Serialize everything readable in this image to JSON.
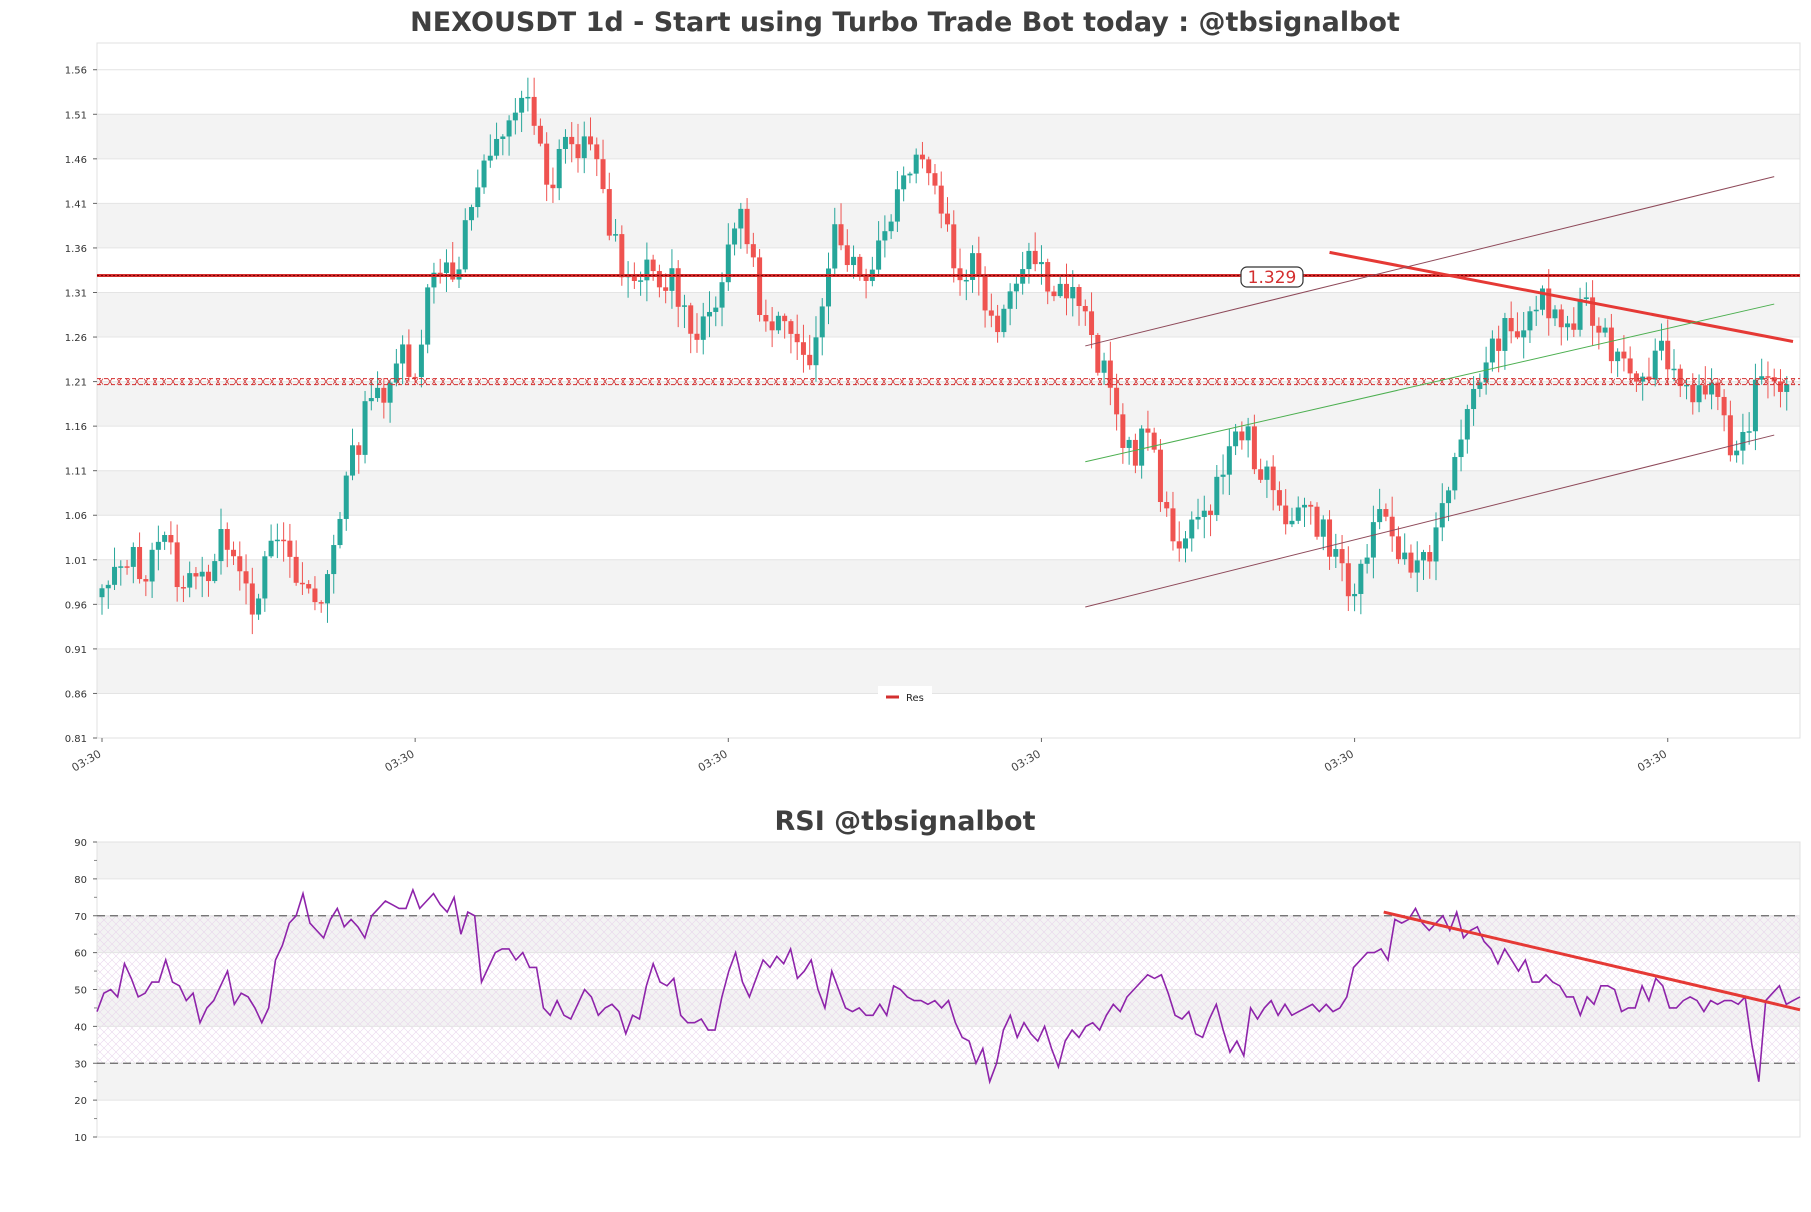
{
  "chart_data": [
    {
      "type": "candlestick",
      "title": "NEXOUSDT 1d - Start using Turbo Trade Bot today : @tbsignalbot",
      "ylim": [
        0.81,
        1.59
      ],
      "y_ticks": [
        "1.56",
        "1.51",
        "1.46",
        "1.41",
        "1.36",
        "1.31",
        "1.26",
        "1.21",
        "1.16",
        "1.11",
        "1.06",
        "1.01",
        "0.96",
        "0.91",
        "0.86",
        "0.81"
      ],
      "x_ticks": [
        "03:30",
        "03:30",
        "03:30",
        "03:30",
        "03:30",
        "03:30"
      ],
      "x_tick_positions": [
        0,
        50,
        100,
        150,
        200,
        250
      ],
      "close_path": [
        0.97,
        0.99,
        1.02,
        0.99,
        1.04,
        1.02,
        0.97,
        1.01,
        0.99,
        1.04,
        1.02,
        0.96,
        1.0,
        1.04,
        0.99,
        0.98,
        0.95,
        1.03,
        1.1,
        1.15,
        1.22,
        1.18,
        1.25,
        1.22,
        1.31,
        1.35,
        1.33,
        1.4,
        1.44,
        1.47,
        1.51,
        1.53,
        1.49,
        1.4,
        1.5,
        1.46,
        1.49,
        1.4,
        1.36,
        1.3,
        1.34,
        1.31,
        1.33,
        1.28,
        1.27,
        1.3,
        1.34,
        1.41,
        1.33,
        1.26,
        1.28,
        1.24,
        1.23,
        1.31,
        1.39,
        1.35,
        1.32,
        1.36,
        1.4,
        1.44,
        1.48,
        1.44,
        1.4,
        1.32,
        1.35,
        1.3,
        1.28,
        1.32,
        1.36,
        1.34,
        1.32,
        1.31,
        1.3,
        1.24,
        1.21,
        1.15,
        1.13,
        1.16,
        1.07,
        1.02,
        1.06,
        1.04,
        1.1,
        1.13,
        1.16,
        1.12,
        1.09,
        1.05,
        1.08,
        1.06,
        1.04,
        1.01,
        0.96,
        1.02,
        1.05,
        1.04,
        1.0,
        1.01,
        1.03,
        1.1,
        1.13,
        1.21,
        1.23,
        1.27,
        1.25,
        1.29,
        1.3,
        1.28,
        1.27,
        1.29,
        1.28,
        1.25,
        1.24,
        1.22,
        1.23,
        1.25,
        1.21,
        1.2,
        1.21,
        1.19,
        1.1,
        1.16,
        1.21,
        1.22,
        1.2
      ],
      "bull_color": "#26a69a",
      "bear_color": "#ef5350",
      "lines": [
        {
          "name": "Res",
          "value": 1.329,
          "label": "1.329",
          "color": "#d32f2f",
          "style": "solid-heavy"
        },
        {
          "value": 1.21,
          "color": "#d32f2f",
          "style": "dashed-x"
        }
      ],
      "trend_lines": [
        {
          "color": "#e53935",
          "width": 3,
          "from": [
            196,
            1.355
          ],
          "to": [
            270,
            1.255
          ]
        },
        {
          "color": "#4caf50",
          "width": 1,
          "from": [
            157,
            1.12
          ],
          "to": [
            267,
            1.297
          ]
        },
        {
          "color": "#8e4a5a",
          "width": 1,
          "from": [
            157,
            1.25
          ],
          "to": [
            267,
            1.44
          ]
        },
        {
          "color": "#8e4a5a",
          "width": 1,
          "from": [
            157,
            0.957
          ],
          "to": [
            267,
            1.15
          ]
        }
      ],
      "legend": [
        "Res"
      ],
      "legend_placement": "bottom-center"
    },
    {
      "type": "line",
      "title": "RSI @tbsignalbot",
      "ylim": [
        10,
        90
      ],
      "y_ticks": [
        "90",
        "80",
        "70",
        "60",
        "50",
        "40",
        "30",
        "20",
        "10"
      ],
      "reference_lines": [
        70,
        30
      ],
      "line_color": "#8e24aa",
      "values": [
        44,
        49,
        50,
        48,
        57,
        53,
        48,
        49,
        52,
        52,
        58,
        52,
        51,
        47,
        49,
        41,
        45,
        47,
        51,
        55,
        46,
        49,
        48,
        45,
        41,
        45,
        58,
        62,
        68,
        70,
        76,
        68,
        66,
        64,
        69,
        72,
        67,
        69,
        67,
        64,
        70,
        72,
        74,
        73,
        72,
        72,
        77,
        72,
        74,
        76,
        73,
        71,
        75,
        65,
        71,
        70,
        52,
        56,
        60,
        61,
        61,
        58,
        60,
        56,
        56,
        45,
        43,
        47,
        43,
        42,
        46,
        50,
        48,
        43,
        45,
        46,
        44,
        38,
        43,
        42,
        51,
        57,
        52,
        51,
        53,
        43,
        41,
        41,
        42,
        39,
        39,
        48,
        55,
        60,
        52,
        48,
        53,
        58,
        56,
        59,
        57,
        61,
        53,
        55,
        58,
        50,
        45,
        55,
        50,
        45,
        44,
        45,
        43,
        43,
        46,
        43,
        51,
        50,
        48,
        47,
        47,
        46,
        47,
        45,
        47,
        41,
        37,
        36,
        30,
        34,
        25,
        30,
        39,
        43,
        37,
        41,
        38,
        36,
        40,
        34,
        29,
        36,
        39,
        37,
        40,
        41,
        39,
        43,
        46,
        44,
        48,
        50,
        52,
        54,
        53,
        54,
        49,
        43,
        42,
        44,
        38,
        37,
        42,
        46,
        39,
        33,
        36,
        32,
        45,
        42,
        45,
        47,
        43,
        46,
        43,
        44,
        45,
        46,
        44,
        46,
        44,
        45,
        48,
        56,
        58,
        60,
        60,
        61,
        58,
        69,
        68,
        69,
        72,
        68,
        66,
        68,
        70,
        66,
        71,
        64,
        66,
        67,
        63,
        61,
        57,
        61,
        58,
        55,
        58,
        52,
        52,
        54,
        52,
        51,
        48,
        48,
        43,
        48,
        46,
        51,
        51,
        50,
        44,
        45,
        45,
        51,
        47,
        53,
        51,
        45,
        45,
        47,
        48,
        47,
        44,
        47,
        46,
        47,
        47,
        46,
        48,
        35,
        25,
        47,
        49,
        51,
        46,
        47,
        48
      ],
      "trend_line": {
        "color": "#e53935",
        "width": 3,
        "from": [
          204,
          71.0
        ],
        "to": [
          270,
          44.5
        ]
      }
    }
  ]
}
